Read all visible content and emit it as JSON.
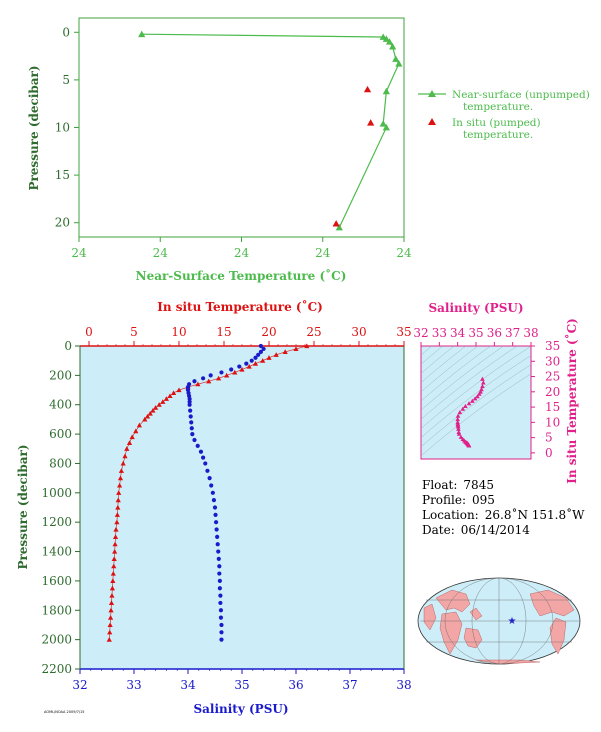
{
  "chart_data": [
    {
      "type": "line",
      "ylabel": "Pressure (decibar)",
      "xlabel": "Near-Surface Temperature (˚C)",
      "x_tick_labels": [
        "24",
        "24",
        "24",
        "24",
        "24"
      ],
      "y_tick_labels": [
        "0",
        "5",
        "10",
        "15",
        "20"
      ],
      "ylim": [
        21.5,
        -1.5
      ],
      "grid": false,
      "legend_position": "right",
      "legend": [
        {
          "label_line1": "Near-surface (unpumped)",
          "label_line2": "temperature.",
          "color": "#4cbb4c",
          "marker": "triangle-line"
        },
        {
          "label_line1": "In situ (pumped)",
          "label_line2": "temperature.",
          "color": "#dd1111",
          "marker": "triangle"
        }
      ],
      "series": [
        {
          "name": "Near-surface (unpumped) temperature.",
          "x_norm": [
            0.2,
            0.97,
            0.98,
            0.99,
            1.0,
            1.01,
            1.02,
            0.98,
            0.97,
            0.98,
            0.83
          ],
          "y": [
            0.2,
            0.5,
            0.7,
            1.0,
            1.5,
            2.8,
            3.3,
            6.2,
            9.6,
            10.0,
            20.5
          ]
        },
        {
          "name": "In situ (pumped) temperature.",
          "x_norm": [
            0.92,
            0.93,
            0.82
          ],
          "y": [
            6.0,
            9.5,
            20.1
          ]
        }
      ]
    },
    {
      "type": "line",
      "ylabel": "Pressure (decibar)",
      "x_top_label": "In situ Temperature (˚C)",
      "x_bottom_label": "Salinity (PSU)",
      "temperature_ticks": [
        "0",
        "5",
        "10",
        "15",
        "20",
        "25",
        "30",
        "35"
      ],
      "salinity_ticks": [
        "32",
        "33",
        "34",
        "35",
        "36",
        "37",
        "38"
      ],
      "pressure_ticks": [
        "0",
        "200",
        "400",
        "600",
        "800",
        "1000",
        "1200",
        "1400",
        "1600",
        "1800",
        "2000",
        "2200"
      ],
      "temperature_range": [
        -1,
        35
      ],
      "salinity_range": [
        32,
        38
      ],
      "pressure_range": [
        0,
        2200
      ],
      "background": "#cdeef8",
      "series": [
        {
          "name": "In situ Temperature (˚C)",
          "color": "#dd1111",
          "marker": "triangle",
          "pressure": [
            0,
            20,
            40,
            60,
            80,
            100,
            120,
            140,
            160,
            180,
            200,
            220,
            240,
            260,
            280,
            300,
            320,
            340,
            360,
            380,
            400,
            420,
            440,
            460,
            480,
            500,
            540,
            580,
            620,
            660,
            700,
            750,
            800,
            850,
            900,
            950,
            1000,
            1050,
            1100,
            1150,
            1200,
            1250,
            1300,
            1350,
            1400,
            1450,
            1500,
            1550,
            1600,
            1650,
            1700,
            1750,
            1800,
            1850,
            1900,
            1950,
            2000
          ],
          "temperature": [
            24.2,
            23.0,
            21.8,
            20.8,
            20.0,
            19.3,
            18.5,
            17.8,
            17.0,
            16.2,
            15.3,
            14.4,
            13.3,
            12.1,
            11.0,
            10.0,
            9.4,
            9.0,
            8.6,
            8.2,
            7.8,
            7.4,
            7.1,
            6.8,
            6.5,
            6.2,
            5.6,
            5.2,
            4.8,
            4.5,
            4.2,
            4.0,
            3.8,
            3.6,
            3.5,
            3.4,
            3.3,
            3.25,
            3.2,
            3.15,
            3.1,
            3.0,
            2.95,
            2.9,
            2.85,
            2.8,
            2.75,
            2.7,
            2.65,
            2.6,
            2.55,
            2.5,
            2.45,
            2.4,
            2.35,
            2.3,
            2.25
          ]
        },
        {
          "name": "Salinity (PSU)",
          "color": "#1a1acc",
          "marker": "circle",
          "pressure": [
            0,
            20,
            40,
            60,
            80,
            100,
            120,
            140,
            160,
            180,
            200,
            220,
            240,
            260,
            280,
            300,
            320,
            340,
            360,
            380,
            400,
            440,
            480,
            520,
            560,
            600,
            640,
            680,
            720,
            760,
            800,
            850,
            900,
            950,
            1000,
            1050,
            1100,
            1150,
            1200,
            1250,
            1300,
            1350,
            1400,
            1450,
            1500,
            1550,
            1600,
            1650,
            1700,
            1750,
            1800,
            1850,
            1900,
            1950,
            2000
          ],
          "salinity": [
            35.35,
            35.4,
            35.35,
            35.3,
            35.25,
            35.18,
            35.08,
            34.95,
            34.8,
            34.62,
            34.42,
            34.28,
            34.12,
            34.02,
            34.0,
            34.0,
            34.01,
            34.02,
            34.03,
            34.03,
            34.03,
            34.04,
            34.05,
            34.06,
            34.07,
            34.08,
            34.12,
            34.18,
            34.24,
            34.28,
            34.32,
            34.36,
            34.4,
            34.43,
            34.46,
            34.48,
            34.5,
            34.51,
            34.52,
            34.53,
            34.54,
            34.55,
            34.56,
            34.57,
            34.58,
            34.58,
            34.59,
            34.59,
            34.6,
            34.6,
            34.61,
            34.61,
            34.62,
            34.62,
            34.62
          ]
        }
      ]
    },
    {
      "type": "scatter",
      "xlabel": "Salinity (PSU)",
      "ylabel": "In situ Temperature (˚C)",
      "x_ticks": [
        "32",
        "33",
        "34",
        "35",
        "36",
        "37",
        "38"
      ],
      "y_ticks": [
        "0",
        "5",
        "10",
        "15",
        "20",
        "25",
        "30",
        "35"
      ],
      "xlim": [
        32,
        38
      ],
      "ylim": [
        -2,
        35
      ],
      "color": "#e0218a",
      "points": {
        "salinity": [
          35.35,
          35.4,
          35.35,
          35.3,
          35.25,
          35.18,
          35.08,
          34.95,
          34.8,
          34.62,
          34.42,
          34.28,
          34.12,
          34.02,
          34.0,
          34.0,
          34.01,
          34.02,
          34.03,
          34.04,
          34.06,
          34.08,
          34.18,
          34.28,
          34.36,
          34.43,
          34.48,
          34.51,
          34.53,
          34.55,
          34.57,
          34.58,
          34.59,
          34.6,
          34.61,
          34.62
        ],
        "temperature": [
          24.2,
          23.0,
          21.8,
          20.8,
          20.0,
          19.3,
          18.5,
          17.8,
          17.0,
          16.2,
          15.3,
          14.4,
          13.3,
          12.1,
          11.0,
          10.0,
          9.4,
          9.0,
          8.6,
          7.8,
          6.8,
          6.2,
          5.2,
          4.5,
          4.0,
          3.6,
          3.4,
          3.25,
          3.15,
          3.0,
          2.9,
          2.8,
          2.7,
          2.6,
          2.5,
          2.35
        ]
      }
    }
  ],
  "float_info": {
    "float_label": "Float:",
    "float_value": "7845",
    "profile_label": "Profile:",
    "profile_value": "095",
    "location_label": "Location:",
    "location_value": "26.8˚N  151.8˚W",
    "date_label": "Date:",
    "date_value": "06/14/2014"
  },
  "map": {
    "marker_icon": "star-icon",
    "ocean_color": "#cdeef8",
    "land_color": "#f2a6a6",
    "marker_color": "#2222cc"
  },
  "footer_text": "AOML/NOAA 2009/7/15"
}
